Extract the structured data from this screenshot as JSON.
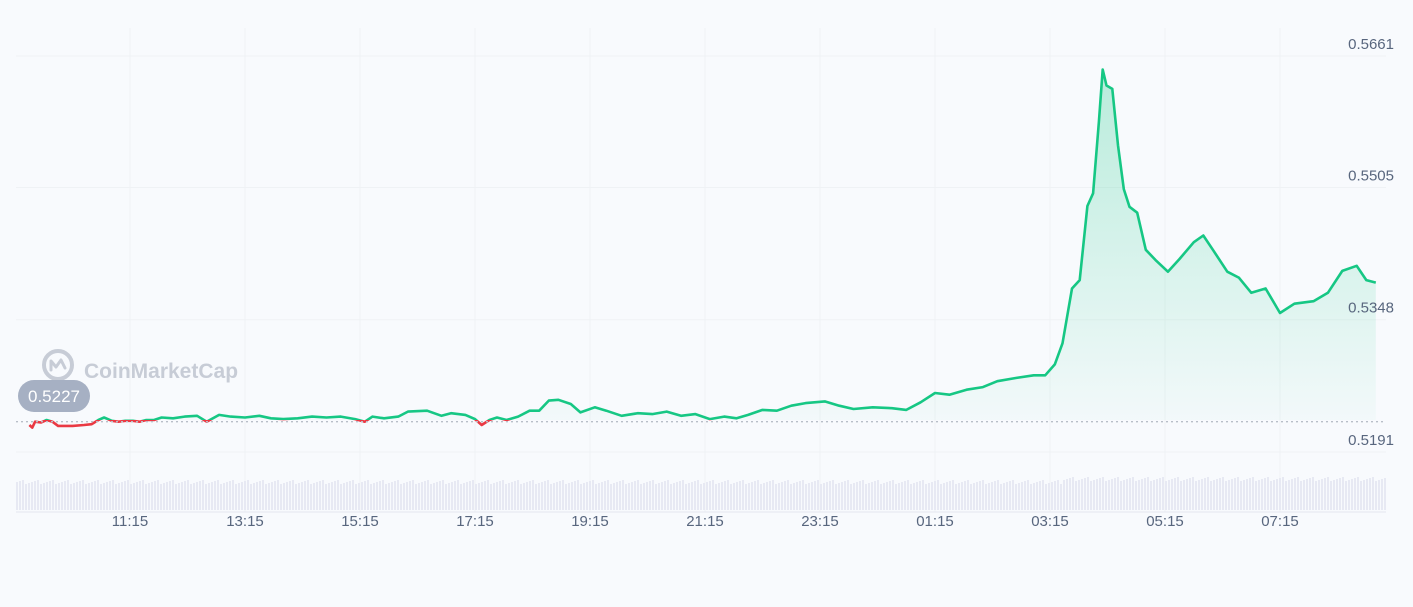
{
  "watermark": {
    "text": "CoinMarketCap",
    "icon": "coinmarketcap-logo-icon"
  },
  "chart_data": {
    "type": "area",
    "title": "",
    "xlabel": "",
    "ylabel": "",
    "x_ticks": [
      "11:15",
      "13:15",
      "15:15",
      "17:15",
      "19:15",
      "21:15",
      "23:15",
      "01:15",
      "03:15",
      "05:15",
      "07:15"
    ],
    "y_ticks": [
      "0.5661",
      "0.5505",
      "0.5348",
      "0.5191"
    ],
    "ylim": [
      0.5191,
      0.5661
    ],
    "x_start": "09:30",
    "x_end": "08:55",
    "reference_price": 0.5227,
    "reference_label": "0.5227",
    "colors": {
      "up": "#16c784",
      "down": "#ea3943",
      "volume": "#e7e9f3",
      "grid": "#eff2f5"
    },
    "grid": true,
    "series": [
      {
        "values": [
          {
            "t": "09:30",
            "v": 0.5223
          },
          {
            "t": "09:33",
            "v": 0.522
          },
          {
            "t": "09:36",
            "v": 0.5227
          },
          {
            "t": "09:42",
            "v": 0.5226
          },
          {
            "t": "09:48",
            "v": 0.5229
          },
          {
            "t": "09:54",
            "v": 0.5227
          },
          {
            "t": "10:00",
            "v": 0.5222
          },
          {
            "t": "10:15",
            "v": 0.5222
          },
          {
            "t": "10:27",
            "v": 0.5223
          },
          {
            "t": "10:35",
            "v": 0.5224
          },
          {
            "t": "10:42",
            "v": 0.5229
          },
          {
            "t": "10:48",
            "v": 0.5232
          },
          {
            "t": "10:56",
            "v": 0.5228
          },
          {
            "t": "11:03",
            "v": 0.5227
          },
          {
            "t": "11:10",
            "v": 0.5228
          },
          {
            "t": "11:18",
            "v": 0.5228
          },
          {
            "t": "11:25",
            "v": 0.5227
          },
          {
            "t": "11:32",
            "v": 0.5229
          },
          {
            "t": "11:40",
            "v": 0.5229
          },
          {
            "t": "11:48",
            "v": 0.5232
          },
          {
            "t": "12:00",
            "v": 0.5231
          },
          {
            "t": "12:12",
            "v": 0.5233
          },
          {
            "t": "12:25",
            "v": 0.5234
          },
          {
            "t": "12:35",
            "v": 0.5227
          },
          {
            "t": "12:48",
            "v": 0.5235
          },
          {
            "t": "13:00",
            "v": 0.5233
          },
          {
            "t": "13:15",
            "v": 0.5232
          },
          {
            "t": "13:30",
            "v": 0.5234
          },
          {
            "t": "13:42",
            "v": 0.5231
          },
          {
            "t": "13:55",
            "v": 0.523
          },
          {
            "t": "14:10",
            "v": 0.5231
          },
          {
            "t": "14:25",
            "v": 0.5233
          },
          {
            "t": "14:40",
            "v": 0.5232
          },
          {
            "t": "14:55",
            "v": 0.5233
          },
          {
            "t": "15:10",
            "v": 0.523
          },
          {
            "t": "15:20",
            "v": 0.5227
          },
          {
            "t": "15:28",
            "v": 0.5233
          },
          {
            "t": "15:40",
            "v": 0.5231
          },
          {
            "t": "15:55",
            "v": 0.5233
          },
          {
            "t": "16:05",
            "v": 0.5239
          },
          {
            "t": "16:25",
            "v": 0.524
          },
          {
            "t": "16:40",
            "v": 0.5234
          },
          {
            "t": "16:50",
            "v": 0.5237
          },
          {
            "t": "17:05",
            "v": 0.5235
          },
          {
            "t": "17:15",
            "v": 0.523
          },
          {
            "t": "17:22",
            "v": 0.5223
          },
          {
            "t": "17:30",
            "v": 0.5229
          },
          {
            "t": "17:38",
            "v": 0.5232
          },
          {
            "t": "17:48",
            "v": 0.5229
          },
          {
            "t": "18:00",
            "v": 0.5233
          },
          {
            "t": "18:12",
            "v": 0.524
          },
          {
            "t": "18:22",
            "v": 0.524
          },
          {
            "t": "18:32",
            "v": 0.5252
          },
          {
            "t": "18:42",
            "v": 0.5253
          },
          {
            "t": "18:55",
            "v": 0.5248
          },
          {
            "t": "19:05",
            "v": 0.5238
          },
          {
            "t": "19:20",
            "v": 0.5244
          },
          {
            "t": "19:32",
            "v": 0.524
          },
          {
            "t": "19:48",
            "v": 0.5234
          },
          {
            "t": "20:05",
            "v": 0.5237
          },
          {
            "t": "20:20",
            "v": 0.5236
          },
          {
            "t": "20:35",
            "v": 0.5239
          },
          {
            "t": "20:50",
            "v": 0.5234
          },
          {
            "t": "21:05",
            "v": 0.5236
          },
          {
            "t": "21:20",
            "v": 0.523
          },
          {
            "t": "21:35",
            "v": 0.5233
          },
          {
            "t": "21:48",
            "v": 0.5231
          },
          {
            "t": "22:00",
            "v": 0.5235
          },
          {
            "t": "22:15",
            "v": 0.5241
          },
          {
            "t": "22:30",
            "v": 0.524
          },
          {
            "t": "22:45",
            "v": 0.5246
          },
          {
            "t": "23:00",
            "v": 0.5249
          },
          {
            "t": "23:20",
            "v": 0.5251
          },
          {
            "t": "23:35",
            "v": 0.5246
          },
          {
            "t": "23:50",
            "v": 0.5242
          },
          {
            "t": "00:10",
            "v": 0.5244
          },
          {
            "t": "00:30",
            "v": 0.5243
          },
          {
            "t": "00:45",
            "v": 0.5241
          },
          {
            "t": "01:00",
            "v": 0.525
          },
          {
            "t": "01:15",
            "v": 0.5261
          },
          {
            "t": "01:30",
            "v": 0.5259
          },
          {
            "t": "01:48",
            "v": 0.5265
          },
          {
            "t": "02:05",
            "v": 0.5268
          },
          {
            "t": "02:20",
            "v": 0.5275
          },
          {
            "t": "02:40",
            "v": 0.5279
          },
          {
            "t": "02:58",
            "v": 0.5282
          },
          {
            "t": "03:10",
            "v": 0.5282
          },
          {
            "t": "03:20",
            "v": 0.5295
          },
          {
            "t": "03:28",
            "v": 0.532
          },
          {
            "t": "03:38",
            "v": 0.5385
          },
          {
            "t": "03:46",
            "v": 0.5395
          },
          {
            "t": "03:54",
            "v": 0.5483
          },
          {
            "t": "04:00",
            "v": 0.5498
          },
          {
            "t": "04:06",
            "v": 0.5583
          },
          {
            "t": "04:10",
            "v": 0.5645
          },
          {
            "t": "04:14",
            "v": 0.5626
          },
          {
            "t": "04:20",
            "v": 0.5622
          },
          {
            "t": "04:26",
            "v": 0.5555
          },
          {
            "t": "04:32",
            "v": 0.5503
          },
          {
            "t": "04:38",
            "v": 0.5482
          },
          {
            "t": "04:46",
            "v": 0.5475
          },
          {
            "t": "04:55",
            "v": 0.5431
          },
          {
            "t": "05:05",
            "v": 0.5419
          },
          {
            "t": "05:18",
            "v": 0.5405
          },
          {
            "t": "05:30",
            "v": 0.542
          },
          {
            "t": "05:45",
            "v": 0.544
          },
          {
            "t": "05:55",
            "v": 0.5448
          },
          {
            "t": "06:05",
            "v": 0.5431
          },
          {
            "t": "06:20",
            "v": 0.5405
          },
          {
            "t": "06:32",
            "v": 0.5398
          },
          {
            "t": "06:45",
            "v": 0.538
          },
          {
            "t": "07:00",
            "v": 0.5385
          },
          {
            "t": "07:15",
            "v": 0.5356
          },
          {
            "t": "07:30",
            "v": 0.5367
          },
          {
            "t": "07:50",
            "v": 0.537
          },
          {
            "t": "08:05",
            "v": 0.538
          },
          {
            "t": "08:20",
            "v": 0.5406
          },
          {
            "t": "08:35",
            "v": 0.5412
          },
          {
            "t": "08:45",
            "v": 0.5395
          },
          {
            "t": "08:55",
            "v": 0.5392
          }
        ]
      }
    ]
  }
}
